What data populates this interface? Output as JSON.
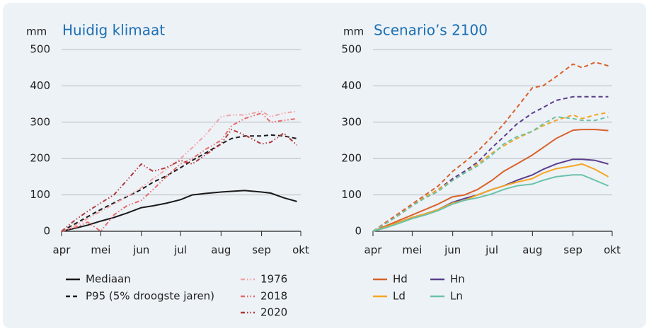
{
  "chart_data": [
    {
      "type": "line",
      "title": "Huidig klimaat",
      "y_unit": "mm",
      "x": [
        0,
        10,
        20,
        30,
        40,
        50,
        61,
        70,
        80,
        91,
        100,
        110,
        122,
        130,
        140,
        153,
        160,
        170,
        180
      ],
      "xlim": [
        0,
        183
      ],
      "xticks": [
        {
          "value": 0,
          "label": "apr"
        },
        {
          "value": 30,
          "label": "mei"
        },
        {
          "value": 61,
          "label": "jun"
        },
        {
          "value": 91,
          "label": "jul"
        },
        {
          "value": 122,
          "label": "aug"
        },
        {
          "value": 153,
          "label": "sep"
        },
        {
          "value": 183,
          "label": "okt"
        }
      ],
      "ylim": [
        0,
        500
      ],
      "yticks": [
        0,
        100,
        200,
        300,
        400,
        500
      ],
      "grid": true,
      "series": [
        {
          "name": "Mediaan",
          "color": "#1a1a1a",
          "dash": "solid",
          "values": [
            0,
            8,
            17,
            28,
            38,
            50,
            65,
            70,
            77,
            87,
            100,
            104,
            108,
            110,
            112,
            108,
            105,
            92,
            82
          ]
        },
        {
          "name": "P95 (5% droogste jaren)",
          "color": "#1a1a1a",
          "dash": "dashed",
          "values": [
            0,
            20,
            40,
            60,
            78,
            95,
            115,
            135,
            152,
            175,
            195,
            215,
            240,
            255,
            262,
            262,
            265,
            262,
            255
          ]
        },
        {
          "name": "1976",
          "color": "#f2a3a3",
          "dash": "dashdotdot",
          "values": [
            0,
            15,
            35,
            55,
            75,
            95,
            120,
            145,
            170,
            200,
            230,
            265,
            315,
            320,
            320,
            330,
            315,
            325,
            330
          ]
        },
        {
          "name": "2018",
          "color": "#e66a6a",
          "dash": "dashdotdot",
          "values": [
            0,
            10,
            25,
            0,
            45,
            70,
            85,
            115,
            150,
            185,
            200,
            225,
            250,
            290,
            310,
            325,
            300,
            305,
            310
          ]
        },
        {
          "name": "2020",
          "color": "#b23a3a",
          "dash": "dashdotdot",
          "values": [
            0,
            30,
            55,
            78,
            100,
            140,
            185,
            165,
            175,
            195,
            185,
            210,
            240,
            280,
            265,
            240,
            245,
            270,
            237
          ]
        }
      ]
    },
    {
      "type": "line",
      "title": "Scenario’s 2100",
      "y_unit": "mm",
      "x": [
        0,
        10,
        20,
        30,
        40,
        50,
        61,
        70,
        80,
        91,
        100,
        110,
        122,
        130,
        140,
        153,
        160,
        170,
        180
      ],
      "xlim": [
        0,
        183
      ],
      "xticks": [
        {
          "value": 0,
          "label": "apr"
        },
        {
          "value": 30,
          "label": "mei"
        },
        {
          "value": 61,
          "label": "jun"
        },
        {
          "value": 91,
          "label": "jul"
        },
        {
          "value": 122,
          "label": "aug"
        },
        {
          "value": 153,
          "label": "sep"
        },
        {
          "value": 183,
          "label": "okt"
        }
      ],
      "ylim": [
        0,
        500
      ],
      "yticks": [
        0,
        100,
        200,
        300,
        400,
        500
      ],
      "grid": true,
      "series": [
        {
          "name": "Hd",
          "color": "#d9622b",
          "dash": "solid",
          "values": [
            0,
            15,
            30,
            45,
            60,
            75,
            95,
            100,
            115,
            140,
            165,
            185,
            210,
            230,
            255,
            278,
            280,
            280,
            277
          ]
        },
        {
          "name": "Hn",
          "color": "#5b3f8c",
          "dash": "solid",
          "values": [
            0,
            12,
            25,
            38,
            48,
            60,
            80,
            90,
            100,
            115,
            125,
            140,
            155,
            170,
            185,
            198,
            198,
            195,
            185
          ]
        },
        {
          "name": "Ld",
          "color": "#f5a623",
          "dash": "solid",
          "values": [
            0,
            12,
            25,
            38,
            48,
            60,
            78,
            85,
            100,
            115,
            125,
            135,
            145,
            160,
            172,
            180,
            185,
            170,
            150
          ]
        },
        {
          "name": "Ln",
          "color": "#6cc2a8",
          "dash": "solid",
          "values": [
            0,
            10,
            22,
            35,
            45,
            57,
            75,
            85,
            92,
            103,
            115,
            125,
            130,
            140,
            150,
            155,
            155,
            140,
            125
          ]
        },
        {
          "color": "#d9622b",
          "dash": "dashed",
          "values": [
            0,
            25,
            50,
            75,
            100,
            125,
            165,
            190,
            220,
            260,
            295,
            340,
            395,
            400,
            425,
            460,
            450,
            465,
            455
          ]
        },
        {
          "color": "#5b3f8c",
          "dash": "dashed",
          "values": [
            0,
            22,
            45,
            70,
            95,
            115,
            145,
            165,
            190,
            230,
            260,
            295,
            325,
            340,
            360,
            370,
            370,
            370,
            370
          ]
        },
        {
          "color": "#f5a623",
          "dash": "dashed",
          "values": [
            0,
            22,
            45,
            70,
            95,
            115,
            140,
            160,
            185,
            215,
            235,
            255,
            275,
            290,
            305,
            320,
            310,
            320,
            327
          ]
        },
        {
          "color": "#6cc2a8",
          "dash": "dashed",
          "values": [
            0,
            22,
            45,
            70,
            92,
            110,
            140,
            160,
            180,
            210,
            240,
            260,
            275,
            295,
            315,
            310,
            305,
            305,
            315
          ]
        }
      ]
    }
  ]
}
